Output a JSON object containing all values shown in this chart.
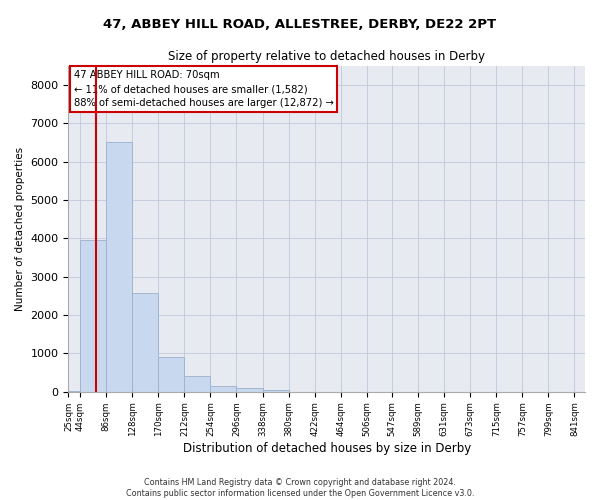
{
  "title1": "47, ABBEY HILL ROAD, ALLESTREE, DERBY, DE22 2PT",
  "title2": "Size of property relative to detached houses in Derby",
  "xlabel": "Distribution of detached houses by size in Derby",
  "ylabel": "Number of detached properties",
  "bar_color": "#c8d8ee",
  "bar_edge_color": "#9ab0cc",
  "vline_color": "#cc0000",
  "vline_x": 70,
  "annotation_title": "47 ABBEY HILL ROAD: 70sqm",
  "annotation_line1": "← 11% of detached houses are smaller (1,582)",
  "annotation_line2": "88% of semi-detached houses are larger (12,872) →",
  "footnote1": "Contains HM Land Registry data © Crown copyright and database right 2024.",
  "footnote2": "Contains public sector information licensed under the Open Government Licence v3.0.",
  "tick_positions": [
    25,
    44,
    86,
    128,
    170,
    212,
    254,
    296,
    338,
    380,
    422,
    464,
    506,
    547,
    589,
    631,
    673,
    715,
    757,
    799,
    841
  ],
  "bin_labels": [
    "25sqm",
    "44sqm",
    "86sqm",
    "128sqm",
    "170sqm",
    "212sqm",
    "254sqm",
    "296sqm",
    "338sqm",
    "380sqm",
    "422sqm",
    "464sqm",
    "506sqm",
    "547sqm",
    "589sqm",
    "631sqm",
    "673sqm",
    "715sqm",
    "757sqm",
    "799sqm",
    "841sqm"
  ],
  "bar_lefts": [
    25,
    44,
    86,
    128,
    170,
    212,
    254,
    296,
    338
  ],
  "bar_rights": [
    44,
    86,
    128,
    170,
    212,
    254,
    296,
    338,
    380
  ],
  "bar_heights": [
    30,
    3950,
    6520,
    2580,
    920,
    400,
    155,
    100,
    50
  ],
  "ylim": [
    0,
    8500
  ],
  "yticks": [
    0,
    1000,
    2000,
    3000,
    4000,
    5000,
    6000,
    7000,
    8000
  ],
  "grid_color": "#c0c8dc",
  "background_color": "#e8eaf2",
  "xlim_min": 25,
  "xlim_max": 858
}
